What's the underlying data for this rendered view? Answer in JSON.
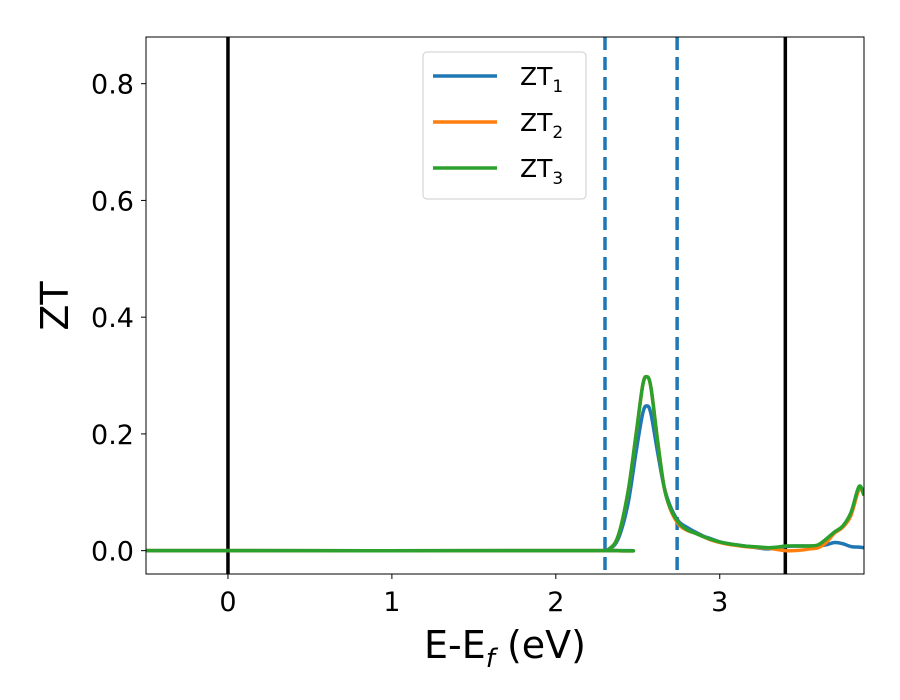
{
  "chart_data": {
    "type": "line",
    "xlabel": {
      "main": "E-E",
      "sub": "f",
      "suffix": " (eV)"
    },
    "ylabel": "ZT",
    "xlim": [
      -0.5,
      3.88
    ],
    "ylim": [
      -0.04,
      0.88
    ],
    "xticks": [
      0,
      1,
      2,
      3
    ],
    "xtick_labels": [
      "0",
      "1",
      "2",
      "3"
    ],
    "yticks": [
      0.0,
      0.2,
      0.4,
      0.6,
      0.8
    ],
    "ytick_labels": [
      "0.0",
      "0.2",
      "0.4",
      "0.6",
      "0.8"
    ],
    "grid": false,
    "legend_position": "top-center",
    "series": [
      {
        "name": "ZT",
        "name_sub": "1",
        "color": "#1f77b4",
        "x": [
          -0.5,
          2.25,
          2.32,
          2.38,
          2.44,
          2.49,
          2.53,
          2.555,
          2.58,
          2.62,
          2.66,
          2.7,
          2.75,
          2.8,
          2.85,
          2.9,
          2.95,
          3.0,
          3.05,
          3.1,
          3.15,
          3.2,
          3.25,
          3.3,
          3.35,
          3.4,
          3.45,
          3.5,
          3.55,
          3.6,
          3.65,
          3.7,
          3.75,
          3.8,
          3.85,
          3.88
        ],
        "y": [
          0.0,
          0.0,
          0.002,
          0.02,
          0.08,
          0.17,
          0.235,
          0.248,
          0.235,
          0.17,
          0.11,
          0.075,
          0.05,
          0.04,
          0.032,
          0.025,
          0.02,
          0.015,
          0.012,
          0.01,
          0.008,
          0.006,
          0.004,
          0.003,
          0.005,
          0.007,
          0.008,
          0.008,
          0.008,
          0.008,
          0.01,
          0.014,
          0.012,
          0.007,
          0.006,
          0.005
        ]
      },
      {
        "name": "ZT",
        "name_sub": "2",
        "color": "#ff7f0e",
        "x": [
          -0.5,
          2.25,
          2.32,
          2.38,
          2.44,
          2.49,
          2.53,
          2.555,
          2.58,
          2.62,
          2.66,
          2.7,
          2.75,
          2.8,
          2.85,
          2.9,
          2.95,
          3.0,
          3.05,
          3.1,
          3.15,
          3.2,
          3.25,
          3.3,
          3.35,
          3.4,
          3.45,
          3.5,
          3.55,
          3.6,
          3.65,
          3.7,
          3.75,
          3.8,
          3.85,
          3.88
        ],
        "y": [
          0.0,
          0.0,
          0.002,
          0.025,
          0.1,
          0.2,
          0.283,
          0.298,
          0.28,
          0.19,
          0.11,
          0.07,
          0.045,
          0.035,
          0.03,
          0.024,
          0.018,
          0.014,
          0.011,
          0.009,
          0.007,
          0.006,
          0.005,
          0.004,
          0.002,
          0.0,
          0.0,
          0.001,
          0.003,
          0.005,
          0.014,
          0.03,
          0.04,
          0.06,
          0.105,
          0.095
        ]
      },
      {
        "name": "ZT",
        "name_sub": "3",
        "color": "#2ca02c",
        "x": [
          -0.5,
          2.25,
          2.32,
          2.38,
          2.44,
          2.49,
          2.53,
          2.555,
          2.58,
          2.62,
          2.66,
          2.7,
          2.75,
          2.8,
          2.85,
          2.9,
          2.95,
          3.0,
          3.05,
          3.1,
          3.15,
          3.2,
          3.25,
          3.3,
          3.35,
          3.4,
          3.45,
          3.5,
          3.55,
          3.6,
          3.65,
          3.7,
          3.75,
          3.8,
          3.85,
          3.88
        ],
        "y": [
          0.0,
          0.0,
          0.002,
          0.025,
          0.1,
          0.2,
          0.283,
          0.298,
          0.28,
          0.19,
          0.11,
          0.072,
          0.048,
          0.036,
          0.03,
          0.024,
          0.019,
          0.015,
          0.012,
          0.01,
          0.008,
          0.007,
          0.006,
          0.005,
          0.006,
          0.008,
          0.008,
          0.008,
          0.008,
          0.01,
          0.02,
          0.032,
          0.042,
          0.065,
          0.11,
          0.095
        ]
      }
    ],
    "vlines": [
      {
        "x": 0.0,
        "style": "solid",
        "color": "#000000"
      },
      {
        "x": 3.4,
        "style": "solid",
        "color": "#000000"
      },
      {
        "x": 2.3,
        "style": "dashed",
        "color": "#1f77b4"
      },
      {
        "x": 2.74,
        "style": "dashed",
        "color": "#1f77b4"
      }
    ]
  }
}
